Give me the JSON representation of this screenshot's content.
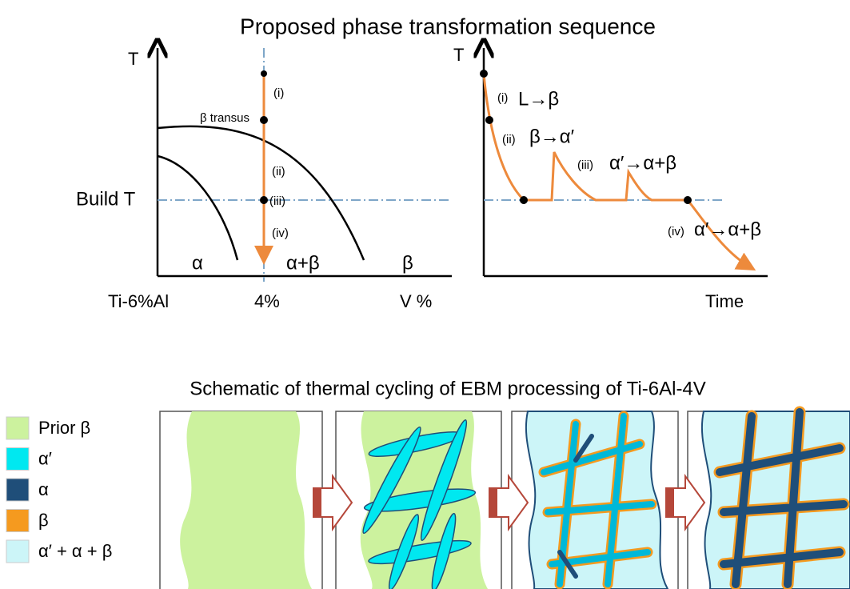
{
  "top_title": "Proposed phase transformation sequence",
  "phase_diagram": {
    "y_label": "T",
    "transus_label": "β transus",
    "build_label": "Build T",
    "regions": [
      "α",
      "α+β",
      "β"
    ],
    "x_labels": [
      "Ti-6%Al",
      "4%",
      "V %"
    ],
    "steps": [
      "(i)",
      "(ii)",
      "(iii)",
      "(iv)"
    ]
  },
  "cooling_curve": {
    "y_label": "T",
    "x_label": "Time",
    "steps": [
      {
        "tag": "(i)",
        "reaction": "L→β"
      },
      {
        "tag": "(ii)",
        "reaction": "β→α′"
      },
      {
        "tag": "(iii)",
        "reaction": "α′→α+β"
      },
      {
        "tag": "(iv)",
        "reaction": "α′→α+β"
      }
    ]
  },
  "bottom_title": "Schematic of thermal cycling of EBM processing of Ti-6Al-4V",
  "legend": [
    {
      "label": "Prior β",
      "color": "#ccf29e"
    },
    {
      "label": "α′",
      "color": "#00e8f0"
    },
    {
      "label": "α",
      "color": "#1f4e79"
    },
    {
      "label": "β",
      "color": "#f59a1f"
    },
    {
      "label": "α′ + α + β",
      "color": "#ccf5f8"
    }
  ]
}
